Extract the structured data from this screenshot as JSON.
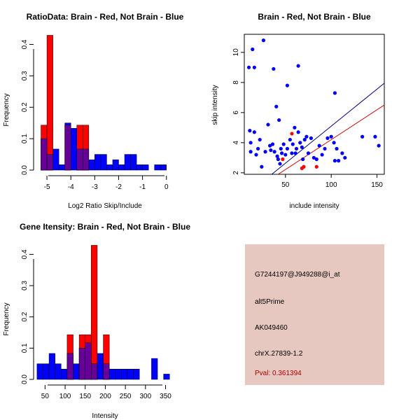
{
  "colors": {
    "red": "#ff0000",
    "blue": "#0000ff",
    "purple": "#660099",
    "info_bg": "#e6c8c0",
    "pval": "#aa0000",
    "line_blue": "#00007a",
    "line_red": "#cc0000"
  },
  "chart_data": [
    {
      "type": "bar",
      "id": "ratio_hist",
      "title": "RatioData: Brain - Red, Not Brain - Blue",
      "xlabel": "Log2 Ratio Skip/Include",
      "ylabel": "Frequency",
      "bin_width": 0.25,
      "xlim": [
        -5.5,
        0.3
      ],
      "ylim": [
        0,
        0.43
      ],
      "xticks": [
        -5,
        -4,
        -3,
        -2,
        -1,
        0
      ],
      "yticks": [
        0.0,
        0.1,
        0.2,
        0.3,
        0.4
      ],
      "series": [
        {
          "name": "Not Brain",
          "color": "blue",
          "bins": [
            [
              -5.25,
              0.1
            ],
            [
              -5.0,
              0.05
            ],
            [
              -4.75,
              0.067
            ],
            [
              -4.5,
              0.017
            ],
            [
              -4.25,
              0.15
            ],
            [
              -4.0,
              0.133
            ],
            [
              -3.75,
              0.067
            ],
            [
              -3.5,
              0.067
            ],
            [
              -3.25,
              0.033
            ],
            [
              -3.0,
              0.05
            ],
            [
              -2.75,
              0.05
            ],
            [
              -2.5,
              0.017
            ],
            [
              -2.25,
              0.033
            ],
            [
              -2.0,
              0.017
            ],
            [
              -1.75,
              0.05
            ],
            [
              -1.5,
              0.05
            ],
            [
              -1.25,
              0.017
            ],
            [
              -1.0,
              0.017
            ],
            [
              -0.5,
              0.017
            ],
            [
              -0.25,
              0.017
            ]
          ]
        },
        {
          "name": "Brain",
          "color": "red",
          "bins": [
            [
              -5.25,
              0.143
            ],
            [
              -5.0,
              0.429
            ],
            [
              -4.25,
              0.143
            ],
            [
              -3.75,
              0.143
            ],
            [
              -3.5,
              0.143
            ]
          ]
        }
      ]
    },
    {
      "type": "scatter",
      "id": "intensity_scatter",
      "title": "Brain - Red, Not Brain - Blue",
      "xlabel": "include intensity",
      "ylabel": "skip intensity",
      "xlim": [
        5,
        158
      ],
      "ylim": [
        1.9,
        11.2
      ],
      "xticks": [
        50,
        100,
        150
      ],
      "yticks": [
        2,
        4,
        6,
        8,
        10
      ],
      "series": [
        {
          "name": "Not Brain",
          "color": "blue",
          "points": [
            [
              10,
              9
            ],
            [
              16,
              9
            ],
            [
              26,
              10.8
            ],
            [
              14,
              10.2
            ],
            [
              37,
              8.9
            ],
            [
              52,
              7.8
            ],
            [
              64,
              9.1
            ],
            [
              104,
              7.3
            ],
            [
              11,
              4.8
            ],
            [
              12,
              3.4
            ],
            [
              16,
              4.7
            ],
            [
              20,
              3.6
            ],
            [
              22,
              4.2
            ],
            [
              24,
              2.4
            ],
            [
              28,
              3.4
            ],
            [
              31,
              5.2
            ],
            [
              34,
              3.5
            ],
            [
              36,
              3.9
            ],
            [
              38,
              3.4
            ],
            [
              40,
              6.4
            ],
            [
              41,
              3.1
            ],
            [
              42,
              2.9
            ],
            [
              43,
              5.5
            ],
            [
              44,
              2.6
            ],
            [
              46,
              3.3
            ],
            [
              48,
              3.9
            ],
            [
              50,
              3.2
            ],
            [
              52,
              3.6
            ],
            [
              55,
              4.2
            ],
            [
              57,
              3.3
            ],
            [
              58,
              3.9
            ],
            [
              60,
              5.0
            ],
            [
              61,
              3.3
            ],
            [
              62,
              3.6
            ],
            [
              64,
              4.7
            ],
            [
              66,
              4.0
            ],
            [
              68,
              3.7
            ],
            [
              69,
              2.9
            ],
            [
              71,
              4.2
            ],
            [
              73,
              4.4
            ],
            [
              75,
              3.3
            ],
            [
              78,
              4.3
            ],
            [
              81,
              3.0
            ],
            [
              84,
              2.9
            ],
            [
              87,
              3.8
            ],
            [
              90,
              3.2
            ],
            [
              93,
              3.6
            ],
            [
              96,
              4.3
            ],
            [
              100,
              4.4
            ],
            [
              103,
              4.0
            ],
            [
              104,
              2.8
            ],
            [
              106,
              3.6
            ],
            [
              108,
              2.8
            ],
            [
              112,
              3.3
            ],
            [
              115,
              3.0
            ],
            [
              134,
              4.4
            ],
            [
              148,
              4.4
            ],
            [
              152,
              3.8
            ],
            [
              12,
              4.0
            ],
            [
              18,
              3.2
            ],
            [
              33,
              3.8
            ],
            [
              45,
              3.6
            ]
          ]
        },
        {
          "name": "Brain",
          "color": "red",
          "points": [
            [
              57,
              4.6
            ],
            [
              47,
              2.9
            ],
            [
              68,
              2.3
            ],
            [
              70,
              2.4
            ],
            [
              84,
              2.4
            ]
          ]
        }
      ],
      "fit_lines": [
        {
          "name": "blue-line",
          "color": "line_blue",
          "from": [
            35,
            1.9
          ],
          "to": [
            158,
            7.95
          ]
        },
        {
          "name": "red-line",
          "color": "line_red",
          "from": [
            42,
            1.9
          ],
          "to": [
            158,
            6.5
          ]
        }
      ]
    },
    {
      "type": "bar",
      "id": "gene_hist",
      "title": "Gene Itensity: Brain - Red, Not Brain - Blue",
      "xlabel": "Intensity",
      "ylabel": "Frequency",
      "bin_width": 15,
      "xlim": [
        25,
        370
      ],
      "ylim": [
        0,
        0.43
      ],
      "xticks": [
        50,
        100,
        150,
        200,
        250,
        300,
        350
      ],
      "yticks": [
        0.0,
        0.1,
        0.2,
        0.3,
        0.4
      ],
      "series": [
        {
          "name": "Not Brain",
          "color": "blue",
          "bins": [
            [
              30,
              0.05
            ],
            [
              45,
              0.05
            ],
            [
              60,
              0.083
            ],
            [
              75,
              0.05
            ],
            [
              90,
              0.033
            ],
            [
              105,
              0.083
            ],
            [
              120,
              0.05
            ],
            [
              135,
              0.1
            ],
            [
              150,
              0.117
            ],
            [
              165,
              0.05
            ],
            [
              180,
              0.083
            ],
            [
              195,
              0.05
            ],
            [
              210,
              0.033
            ],
            [
              225,
              0.033
            ],
            [
              240,
              0.033
            ],
            [
              255,
              0.033
            ],
            [
              270,
              0.033
            ],
            [
              315,
              0.067
            ],
            [
              345,
              0.017
            ]
          ]
        },
        {
          "name": "Brain",
          "color": "red",
          "bins": [
            [
              105,
              0.143
            ],
            [
              135,
              0.143
            ],
            [
              150,
              0.143
            ],
            [
              165,
              0.429
            ],
            [
              195,
              0.143
            ]
          ]
        }
      ]
    }
  ],
  "info": {
    "probe": "G7244197@J949288@i_at",
    "event_type": "alt5Prime",
    "accession": "AK049460",
    "location": "chrX.27839-1.2",
    "pval": "Pval: 0.361394"
  }
}
